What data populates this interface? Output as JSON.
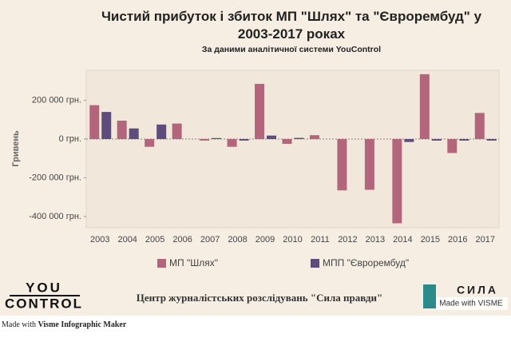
{
  "chart_data": {
    "type": "bar",
    "title": "Чистий прибуток і збиток МП \"Шлях\" та \"Єврорембуд\" у 2003-2017 роках",
    "subtitle": "За даними аналітичної системи YouControl",
    "y_label": "Гривень",
    "categories": [
      "2003",
      "2004",
      "2005",
      "2006",
      "2007",
      "2008",
      "2009",
      "2010",
      "2011",
      "2012",
      "2013",
      "2014",
      "2015",
      "2016",
      "2017"
    ],
    "series": [
      {
        "name": "МП \"Шлях\"",
        "color": "#b3667b",
        "values": [
          175000,
          95000,
          -40000,
          80000,
          -8000,
          -40000,
          285000,
          -25000,
          20000,
          -265000,
          -262000,
          -435000,
          335000,
          -72000,
          135000
        ]
      },
      {
        "name": "МПП \"Єврорембуд\"",
        "color": "#5e4c7c",
        "values": [
          140000,
          55000,
          75000,
          null,
          5000,
          -8000,
          18000,
          6000,
          null,
          null,
          null,
          -15000,
          -8000,
          -8000,
          -8000
        ]
      }
    ],
    "ylim": [
      -458000,
      355000
    ],
    "yticks": [
      {
        "value": 200000,
        "label": "200 000 грн."
      },
      {
        "value": 0,
        "label": "0 грн."
      },
      {
        "value": -200000,
        "label": "-200 000 грн."
      },
      {
        "value": -400000,
        "label": "-400 000 грн."
      }
    ]
  },
  "footer": {
    "logo_left_top": "YOU",
    "logo_left_bottom": "CONTROL",
    "center_text": "Центр журналістських розслідувань \"Сила правди\"",
    "logo_right": "СИЛА",
    "made_with_visme": "Made with VISME",
    "made_with_prefix": "Made with",
    "made_with_link": "Visme Infographic Maker"
  }
}
